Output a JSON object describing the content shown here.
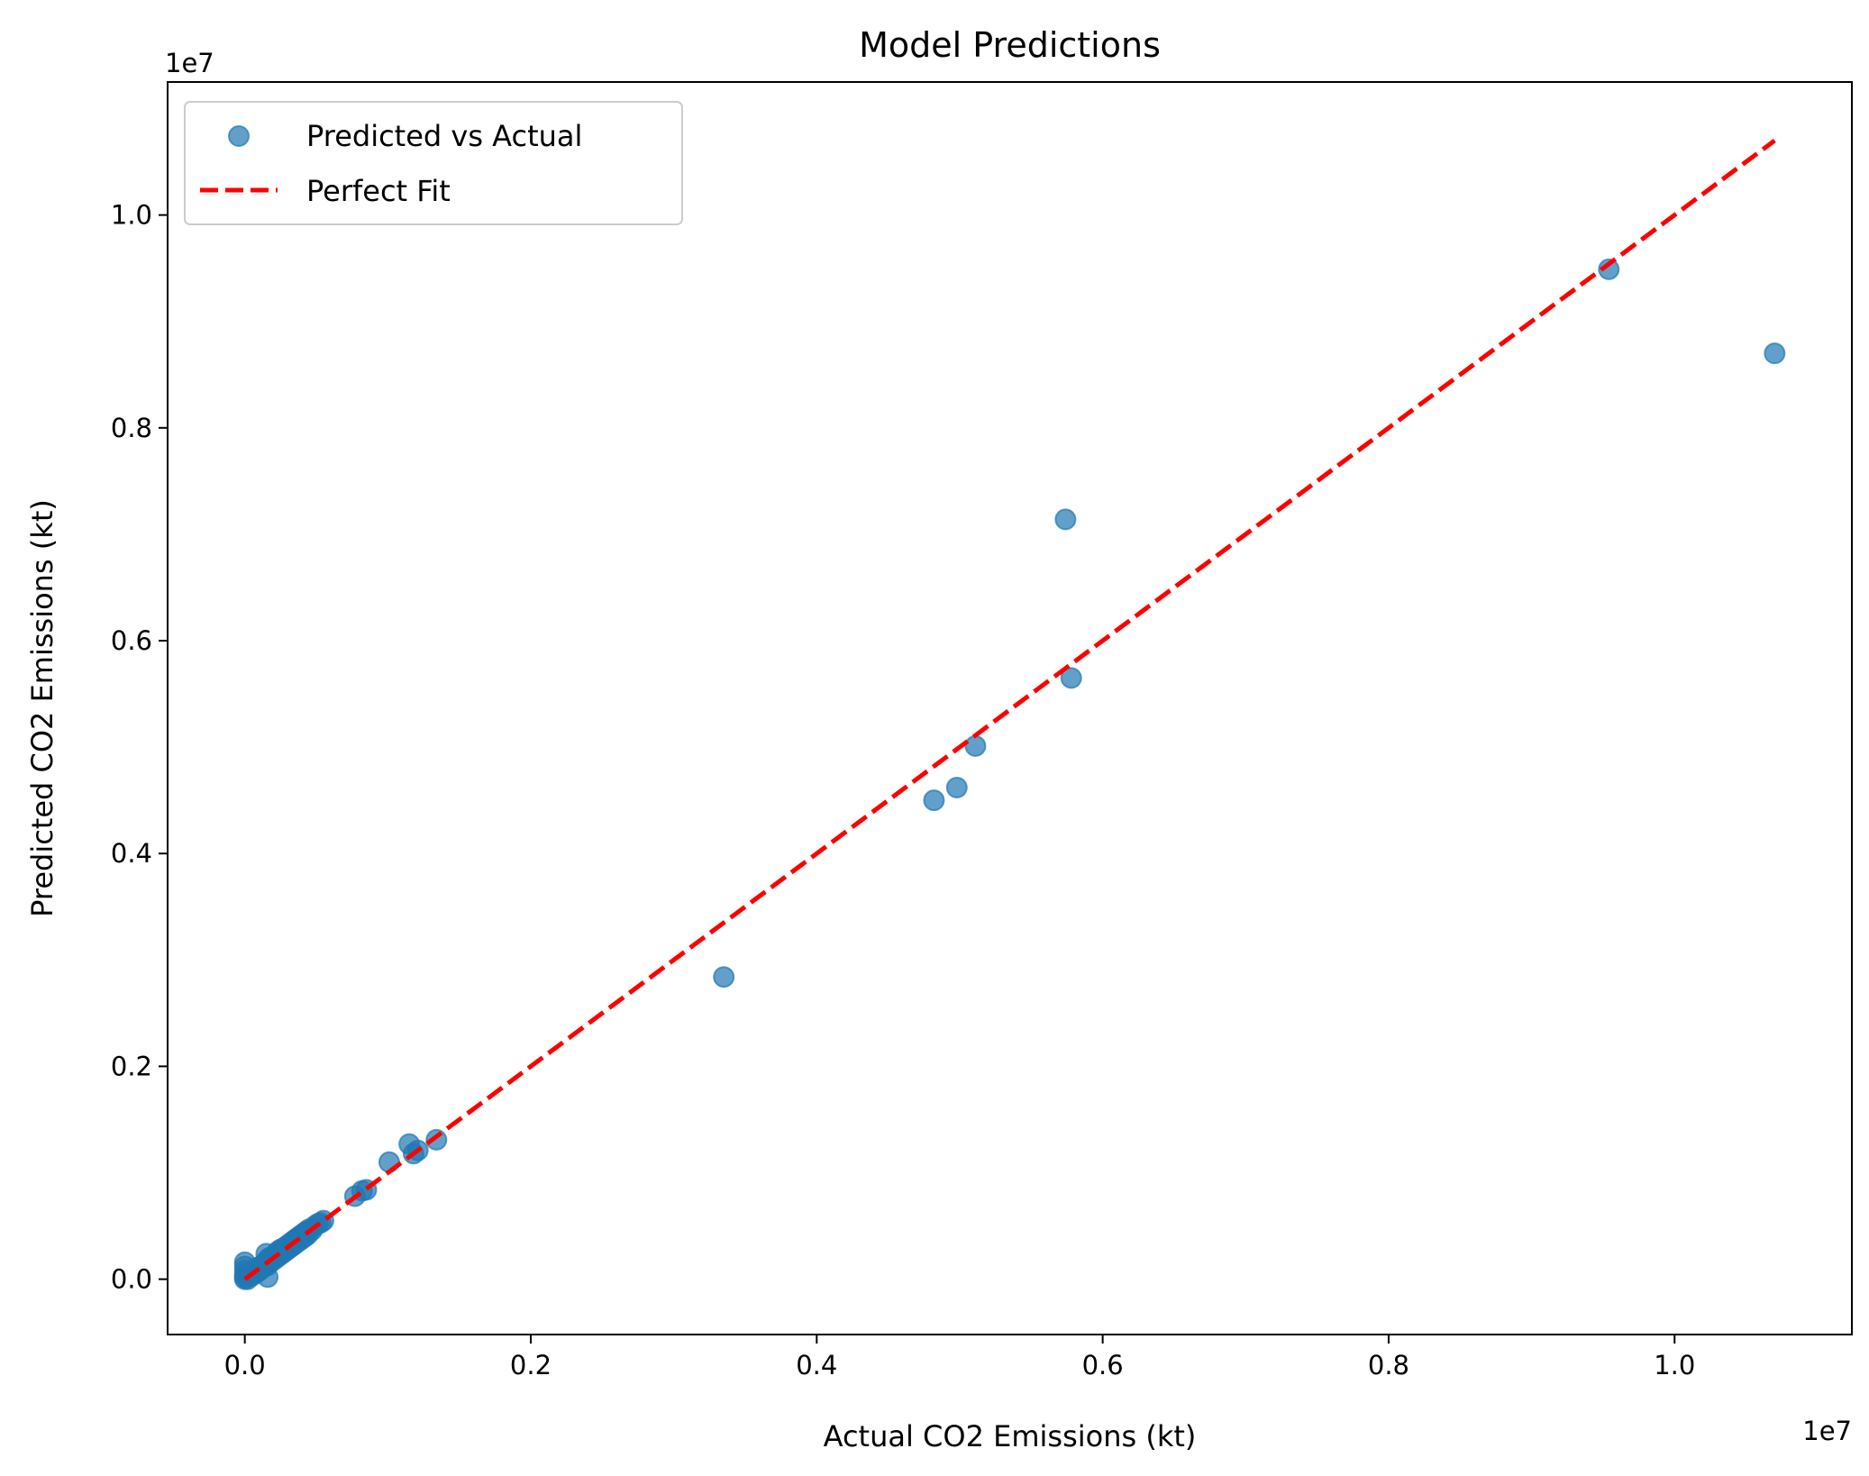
{
  "chart_data": {
    "type": "scatter",
    "title": "Model Predictions",
    "xlabel": "Actual CO2 Emissions (kt)",
    "ylabel": "Predicted CO2 Emissions (kt)",
    "x_offset_label": "1e7",
    "y_offset_label": "1e7",
    "xlim": [
      -0.054,
      1.124
    ],
    "ylim": [
      -0.052,
      1.125
    ],
    "x_ticks": [
      0.0,
      0.2,
      0.4,
      0.6,
      0.8,
      1.0
    ],
    "x_tick_labels": [
      "0.0",
      "0.2",
      "0.4",
      "0.6",
      "0.8",
      "1.0"
    ],
    "y_ticks": [
      0.0,
      0.2,
      0.4,
      0.6,
      0.8,
      1.0
    ],
    "y_tick_labels": [
      "0.0",
      "0.2",
      "0.4",
      "0.6",
      "0.8",
      "1.0"
    ],
    "grid": false,
    "legend_position": "upper-left",
    "series": [
      {
        "name": "Predicted vs Actual",
        "kind": "scatter",
        "color": "#1f77b4",
        "opacity": 0.7,
        "points": [
          [
            0.0,
            0.0
          ],
          [
            0.0,
            0.004
          ],
          [
            0.0,
            0.008
          ],
          [
            0.0,
            0.012
          ],
          [
            0.0,
            0.016
          ],
          [
            0.0,
            0.002
          ],
          [
            0.002,
            0.0
          ],
          [
            0.003,
            0.005
          ],
          [
            0.004,
            0.003
          ],
          [
            0.005,
            0.007
          ],
          [
            0.006,
            0.004
          ],
          [
            0.007,
            0.009
          ],
          [
            0.008,
            0.006
          ],
          [
            0.009,
            0.011
          ],
          [
            0.01,
            0.008
          ],
          [
            0.011,
            0.012
          ],
          [
            0.012,
            0.01
          ],
          [
            0.013,
            0.014
          ],
          [
            0.014,
            0.012
          ],
          [
            0.015,
            0.017
          ],
          [
            0.015,
            0.024
          ],
          [
            0.016,
            0.013
          ],
          [
            0.016,
            0.002
          ],
          [
            0.017,
            0.02
          ],
          [
            0.018,
            0.016
          ],
          [
            0.019,
            0.021
          ],
          [
            0.02,
            0.018
          ],
          [
            0.021,
            0.023
          ],
          [
            0.022,
            0.02
          ],
          [
            0.023,
            0.026
          ],
          [
            0.024,
            0.022
          ],
          [
            0.025,
            0.028
          ],
          [
            0.026,
            0.024
          ],
          [
            0.027,
            0.029
          ],
          [
            0.028,
            0.026
          ],
          [
            0.029,
            0.031
          ],
          [
            0.03,
            0.028
          ],
          [
            0.031,
            0.033
          ],
          [
            0.032,
            0.03
          ],
          [
            0.033,
            0.035
          ],
          [
            0.034,
            0.032
          ],
          [
            0.035,
            0.037
          ],
          [
            0.036,
            0.034
          ],
          [
            0.037,
            0.039
          ],
          [
            0.038,
            0.036
          ],
          [
            0.039,
            0.041
          ],
          [
            0.04,
            0.038
          ],
          [
            0.041,
            0.043
          ],
          [
            0.042,
            0.04
          ],
          [
            0.043,
            0.045
          ],
          [
            0.044,
            0.042
          ],
          [
            0.045,
            0.047
          ],
          [
            0.047,
            0.046
          ],
          [
            0.049,
            0.05
          ],
          [
            0.051,
            0.052
          ],
          [
            0.053,
            0.053
          ],
          [
            0.055,
            0.055
          ],
          [
            0.077,
            0.078
          ],
          [
            0.082,
            0.083
          ],
          [
            0.085,
            0.084
          ],
          [
            0.101,
            0.11
          ],
          [
            0.115,
            0.127
          ],
          [
            0.118,
            0.118
          ],
          [
            0.121,
            0.121
          ],
          [
            0.134,
            0.131
          ],
          [
            0.335,
            0.284
          ],
          [
            0.482,
            0.45
          ],
          [
            0.498,
            0.462
          ],
          [
            0.511,
            0.501
          ],
          [
            0.574,
            0.714
          ],
          [
            0.578,
            0.565
          ],
          [
            0.954,
            0.949
          ],
          [
            1.07,
            0.87
          ]
        ]
      },
      {
        "name": "Perfect Fit",
        "kind": "line",
        "style": "dashed",
        "color": "#ff0000",
        "x": [
          0.0,
          1.07
        ],
        "y": [
          0.0,
          1.07
        ]
      }
    ]
  }
}
